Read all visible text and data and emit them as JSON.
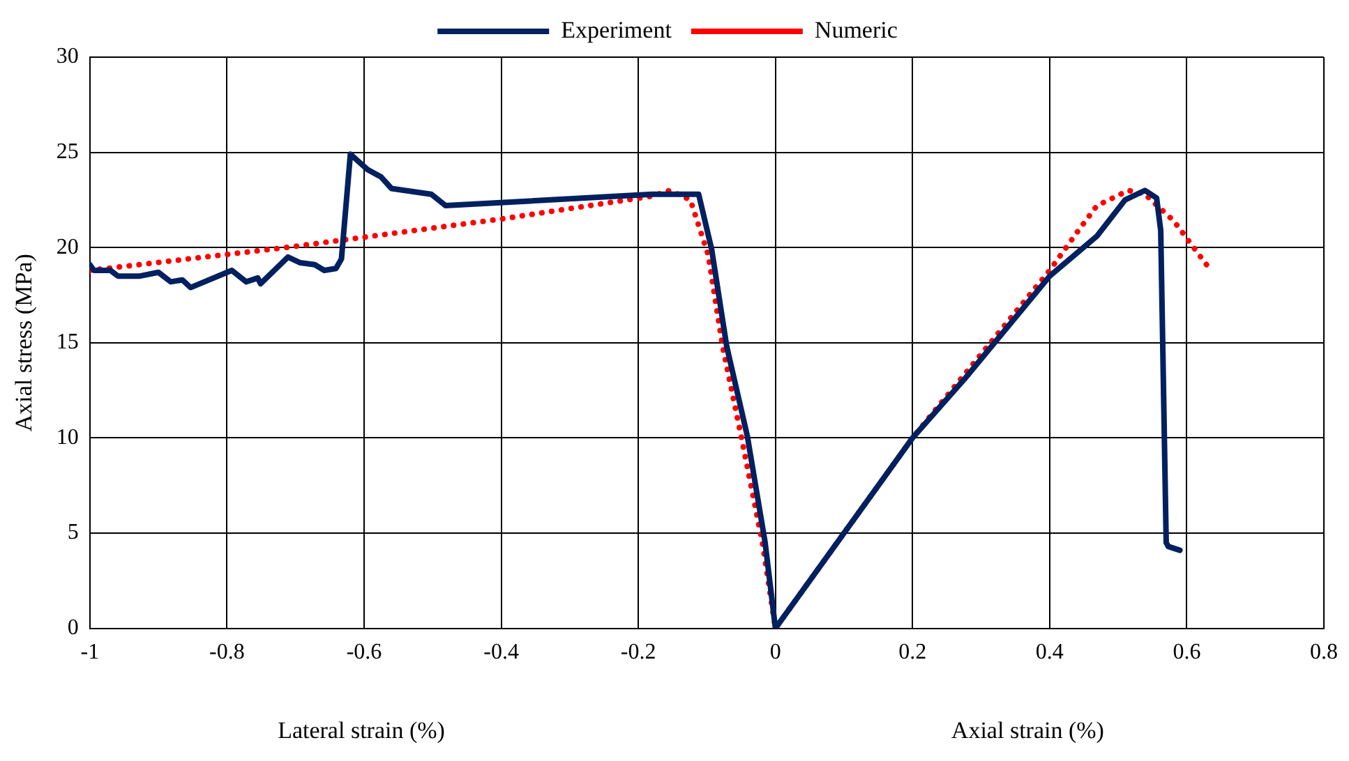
{
  "chart_data": {
    "type": "line",
    "xlabel": "Lateral strain (%)",
    "ylabel": "Axial stress (MPa)",
    "annotations": [
      "Axial strain (%)"
    ],
    "xlim": [
      -1,
      0.8
    ],
    "ylim": [
      0,
      30
    ],
    "xticks": [
      -1,
      -0.8,
      -0.6,
      -0.4,
      -0.2,
      0,
      0.2,
      0.4,
      0.6,
      0.8
    ],
    "yticks": [
      0,
      5,
      10,
      15,
      20,
      25,
      30
    ],
    "grid": true,
    "legend": "top",
    "marker": "none",
    "series": [
      {
        "name": "Experiment",
        "color": "#002060",
        "line_style": "solid",
        "x": [
          -1,
          -0.994,
          -0.97,
          -0.959,
          -0.927,
          -0.9,
          -0.882,
          -0.865,
          -0.853,
          -0.793,
          -0.772,
          -0.755,
          -0.751,
          -0.711,
          -0.693,
          -0.672,
          -0.658,
          -0.641,
          -0.633,
          -0.62,
          -0.595,
          -0.575,
          -0.56,
          -0.502,
          -0.481,
          -0.18,
          -0.112,
          -0.093,
          -0.071,
          -0.041,
          -0.015,
          0,
          0.2,
          0.276,
          0.4,
          0.469,
          0.51,
          0.539,
          0.556,
          0.562,
          0.57,
          0.573,
          0.59
        ],
        "values": [
          19.1,
          18.8,
          18.8,
          18.5,
          18.5,
          18.7,
          18.2,
          18.3,
          17.9,
          18.8,
          18.2,
          18.4,
          18.1,
          19.5,
          19.2,
          19.1,
          18.8,
          18.9,
          19.4,
          24.9,
          24.1,
          23.7,
          23.1,
          22.8,
          22.2,
          22.8,
          22.8,
          19.9,
          14.8,
          10.1,
          4.5,
          0,
          10,
          13.1,
          18.5,
          20.6,
          22.5,
          23,
          22.6,
          20.9,
          4.5,
          4.3,
          4.1
        ]
      },
      {
        "name": "Numeric",
        "color": "#ff0000",
        "line_style": "dotted",
        "x": [
          -1,
          -0.714,
          -0.4,
          -0.18,
          -0.154,
          -0.124,
          -0.098,
          -0.077,
          -0.05,
          -0.019,
          0,
          0.2,
          0.4,
          0.442,
          0.469,
          0.515,
          0.539,
          0.581,
          0.608,
          0.635
        ],
        "values": [
          18.8,
          20,
          21.5,
          22.7,
          23,
          22.5,
          19.6,
          14.8,
          10.1,
          4.5,
          0,
          10,
          18.8,
          20.9,
          22.2,
          23,
          22.8,
          21.4,
          20.1,
          18.8
        ]
      }
    ]
  }
}
